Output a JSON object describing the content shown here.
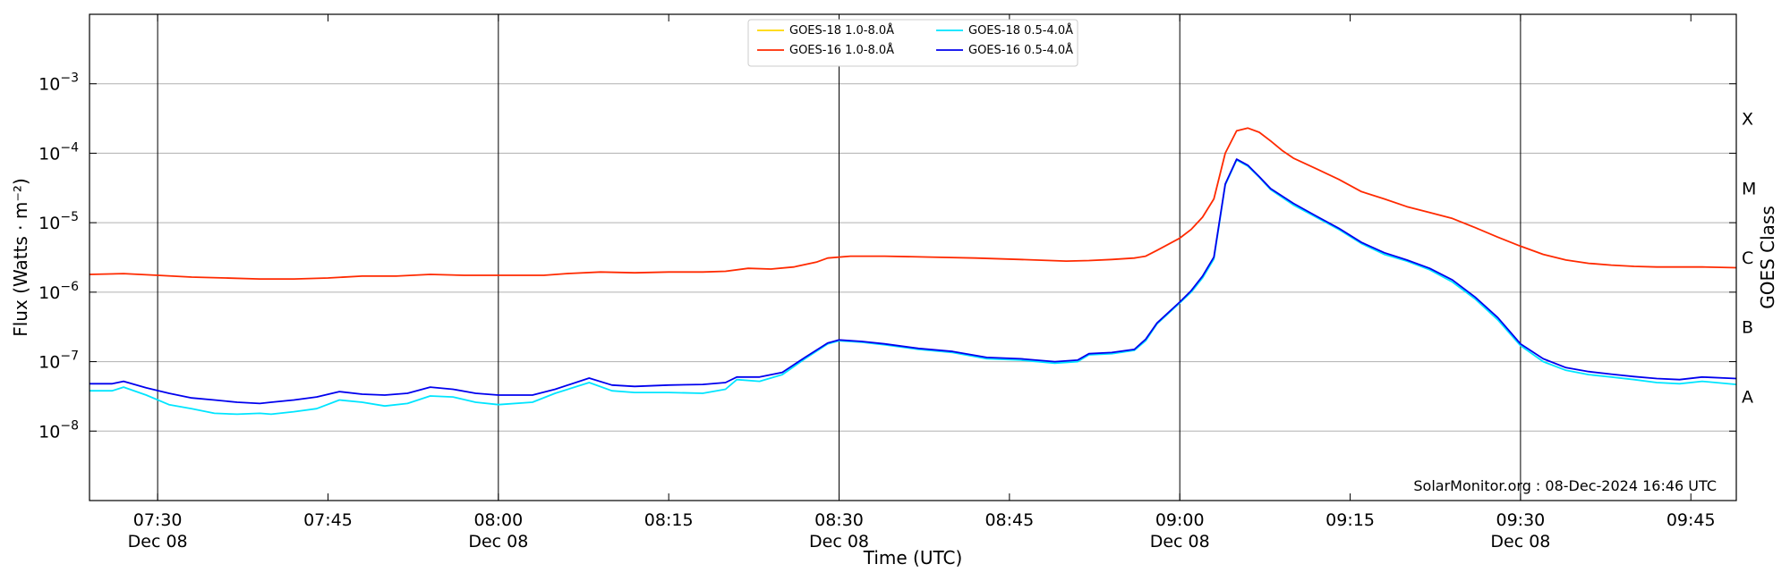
{
  "chart_data": {
    "type": "line",
    "xlabel": "Time (UTC)",
    "ylabel": "Flux (Watts · m⁻²)",
    "right_label": "GOES Class",
    "yscale": "log",
    "ylim": [
      1e-09,
      0.01
    ],
    "xlim": [
      "07:24",
      "09:49"
    ],
    "y_ticks": [
      {
        "value": 1e-08,
        "base": "10",
        "exp": "−8"
      },
      {
        "value": 1e-07,
        "base": "10",
        "exp": "−7"
      },
      {
        "value": 1e-06,
        "base": "10",
        "exp": "−6"
      },
      {
        "value": 1e-05,
        "base": "10",
        "exp": "−5"
      },
      {
        "value": 0.0001,
        "base": "10",
        "exp": "−4"
      },
      {
        "value": 0.001,
        "base": "10",
        "exp": "−3"
      }
    ],
    "x_ticks": [
      {
        "time": "07:30",
        "label": "07:30",
        "sublabel": "Dec 08",
        "vline": true
      },
      {
        "time": "07:45",
        "label": "07:45",
        "sublabel": "",
        "vline": false
      },
      {
        "time": "08:00",
        "label": "08:00",
        "sublabel": "Dec 08",
        "vline": true
      },
      {
        "time": "08:15",
        "label": "08:15",
        "sublabel": "",
        "vline": false
      },
      {
        "time": "08:30",
        "label": "08:30",
        "sublabel": "Dec 08",
        "vline": true
      },
      {
        "time": "08:45",
        "label": "08:45",
        "sublabel": "",
        "vline": false
      },
      {
        "time": "09:00",
        "label": "09:00",
        "sublabel": "Dec 08",
        "vline": true
      },
      {
        "time": "09:15",
        "label": "09:15",
        "sublabel": "",
        "vline": false
      },
      {
        "time": "09:30",
        "label": "09:30",
        "sublabel": "Dec 08",
        "vline": true
      },
      {
        "time": "09:45",
        "label": "09:45",
        "sublabel": "",
        "vline": false
      }
    ],
    "goes_classes": [
      {
        "label": "A",
        "value": 3.16e-08
      },
      {
        "label": "B",
        "value": 3.16e-07
      },
      {
        "label": "C",
        "value": 3.16e-06
      },
      {
        "label": "M",
        "value": 3.16e-05
      },
      {
        "label": "X",
        "value": 0.000316
      }
    ],
    "grid": "horizontal",
    "legend_position": "top-center",
    "credit": "SolarMonitor.org : 08-Dec-2024 16:46 UTC",
    "series": [
      {
        "name": "GOES-18 1.0-8.0Å",
        "color": "#ffd700",
        "points": []
      },
      {
        "name": "GOES-16 1.0-8.0Å",
        "color": "#ff2a00",
        "points": [
          [
            "07:24",
            1.8e-06
          ],
          [
            "07:27",
            1.85e-06
          ],
          [
            "07:30",
            1.75e-06
          ],
          [
            "07:33",
            1.65e-06
          ],
          [
            "07:36",
            1.6e-06
          ],
          [
            "07:39",
            1.55e-06
          ],
          [
            "07:42",
            1.55e-06
          ],
          [
            "07:45",
            1.6e-06
          ],
          [
            "07:48",
            1.7e-06
          ],
          [
            "07:51",
            1.7e-06
          ],
          [
            "07:54",
            1.8e-06
          ],
          [
            "07:57",
            1.75e-06
          ],
          [
            "08:00",
            1.75e-06
          ],
          [
            "08:04",
            1.75e-06
          ],
          [
            "08:06",
            1.85e-06
          ],
          [
            "08:09",
            1.95e-06
          ],
          [
            "08:12",
            1.9e-06
          ],
          [
            "08:15",
            1.95e-06
          ],
          [
            "08:18",
            1.95e-06
          ],
          [
            "08:20",
            2e-06
          ],
          [
            "08:22",
            2.2e-06
          ],
          [
            "08:24",
            2.15e-06
          ],
          [
            "08:26",
            2.3e-06
          ],
          [
            "08:28",
            2.7e-06
          ],
          [
            "08:29",
            3.1e-06
          ],
          [
            "08:31",
            3.3e-06
          ],
          [
            "08:34",
            3.3e-06
          ],
          [
            "08:38",
            3.2e-06
          ],
          [
            "08:42",
            3.1e-06
          ],
          [
            "08:46",
            2.95e-06
          ],
          [
            "08:50",
            2.8e-06
          ],
          [
            "08:52",
            2.85e-06
          ],
          [
            "08:54",
            2.95e-06
          ],
          [
            "08:56",
            3.1e-06
          ],
          [
            "08:57",
            3.3e-06
          ],
          [
            "08:58",
            4e-06
          ],
          [
            "09:00",
            6e-06
          ],
          [
            "09:01",
            8e-06
          ],
          [
            "09:02",
            1.2e-05
          ],
          [
            "09:03",
            2.2e-05
          ],
          [
            "09:04",
            0.0001
          ],
          [
            "09:05",
            0.00021
          ],
          [
            "09:06",
            0.00023
          ],
          [
            "09:07",
            0.0002
          ],
          [
            "09:08",
            0.00015
          ],
          [
            "09:09",
            0.00011
          ],
          [
            "09:10",
            8.5e-05
          ],
          [
            "09:12",
            6e-05
          ],
          [
            "09:14",
            4.2e-05
          ],
          [
            "09:16",
            2.8e-05
          ],
          [
            "09:18",
            2.2e-05
          ],
          [
            "09:20",
            1.7e-05
          ],
          [
            "09:22",
            1.4e-05
          ],
          [
            "09:24",
            1.15e-05
          ],
          [
            "09:26",
            8.5e-06
          ],
          [
            "09:28",
            6.2e-06
          ],
          [
            "09:30",
            4.6e-06
          ],
          [
            "09:32",
            3.5e-06
          ],
          [
            "09:34",
            2.9e-06
          ],
          [
            "09:36",
            2.6e-06
          ],
          [
            "09:38",
            2.45e-06
          ],
          [
            "09:40",
            2.35e-06
          ],
          [
            "09:42",
            2.3e-06
          ],
          [
            "09:44",
            2.3e-06
          ],
          [
            "09:46",
            2.3e-06
          ],
          [
            "09:49",
            2.25e-06
          ]
        ]
      },
      {
        "name": "GOES-18 0.5-4.0Å",
        "color": "#00e5ff",
        "points": [
          [
            "07:24",
            3.8e-08
          ],
          [
            "07:26",
            3.8e-08
          ],
          [
            "07:27",
            4.3e-08
          ],
          [
            "07:29",
            3.3e-08
          ],
          [
            "07:31",
            2.4e-08
          ],
          [
            "07:33",
            2.1e-08
          ],
          [
            "07:35",
            1.8e-08
          ],
          [
            "07:37",
            1.75e-08
          ],
          [
            "07:39",
            1.8e-08
          ],
          [
            "07:40",
            1.75e-08
          ],
          [
            "07:42",
            1.9e-08
          ],
          [
            "07:44",
            2.1e-08
          ],
          [
            "07:46",
            2.8e-08
          ],
          [
            "07:48",
            2.6e-08
          ],
          [
            "07:50",
            2.3e-08
          ],
          [
            "07:52",
            2.5e-08
          ],
          [
            "07:54",
            3.2e-08
          ],
          [
            "07:56",
            3.1e-08
          ],
          [
            "07:58",
            2.6e-08
          ],
          [
            "08:00",
            2.4e-08
          ],
          [
            "08:03",
            2.6e-08
          ],
          [
            "08:05",
            3.5e-08
          ],
          [
            "08:08",
            5e-08
          ],
          [
            "08:10",
            3.8e-08
          ],
          [
            "08:12",
            3.6e-08
          ],
          [
            "08:15",
            3.6e-08
          ],
          [
            "08:18",
            3.5e-08
          ],
          [
            "08:20",
            4e-08
          ],
          [
            "08:21",
            5.5e-08
          ],
          [
            "08:23",
            5.2e-08
          ],
          [
            "08:25",
            6.5e-08
          ],
          [
            "08:27",
            1.1e-07
          ],
          [
            "08:29",
            1.8e-07
          ],
          [
            "08:30",
            2e-07
          ],
          [
            "08:32",
            1.9e-07
          ],
          [
            "08:34",
            1.75e-07
          ],
          [
            "08:37",
            1.5e-07
          ],
          [
            "08:40",
            1.35e-07
          ],
          [
            "08:43",
            1.1e-07
          ],
          [
            "08:46",
            1.05e-07
          ],
          [
            "08:49",
            9.5e-08
          ],
          [
            "08:51",
            1e-07
          ],
          [
            "08:52",
            1.25e-07
          ],
          [
            "08:54",
            1.3e-07
          ],
          [
            "08:56",
            1.45e-07
          ],
          [
            "08:57",
            2e-07
          ],
          [
            "08:58",
            3.5e-07
          ],
          [
            "09:00",
            7e-07
          ],
          [
            "09:01",
            1e-06
          ],
          [
            "09:02",
            1.6e-06
          ],
          [
            "09:03",
            3e-06
          ],
          [
            "09:04",
            3.5e-05
          ],
          [
            "09:05",
            8e-05
          ],
          [
            "09:06",
            6.5e-05
          ],
          [
            "09:07",
            4.5e-05
          ],
          [
            "09:08",
            3e-05
          ],
          [
            "09:10",
            1.8e-05
          ],
          [
            "09:12",
            1.2e-05
          ],
          [
            "09:14",
            8e-06
          ],
          [
            "09:16",
            5e-06
          ],
          [
            "09:18",
            3.5e-06
          ],
          [
            "09:20",
            2.8e-06
          ],
          [
            "09:22",
            2.1e-06
          ],
          [
            "09:24",
            1.4e-06
          ],
          [
            "09:26",
            8e-07
          ],
          [
            "09:28",
            4e-07
          ],
          [
            "09:30",
            1.7e-07
          ],
          [
            "09:32",
            1e-07
          ],
          [
            "09:34",
            7.5e-08
          ],
          [
            "09:36",
            6.5e-08
          ],
          [
            "09:38",
            6e-08
          ],
          [
            "09:40",
            5.5e-08
          ],
          [
            "09:42",
            5e-08
          ],
          [
            "09:44",
            4.8e-08
          ],
          [
            "09:46",
            5.2e-08
          ],
          [
            "09:49",
            4.7e-08
          ]
        ]
      },
      {
        "name": "GOES-16 0.5-4.0Å",
        "color": "#0000ee",
        "points": [
          [
            "07:24",
            4.8e-08
          ],
          [
            "07:26",
            4.8e-08
          ],
          [
            "07:27",
            5.2e-08
          ],
          [
            "07:29",
            4.2e-08
          ],
          [
            "07:31",
            3.5e-08
          ],
          [
            "07:33",
            3e-08
          ],
          [
            "07:35",
            2.8e-08
          ],
          [
            "07:37",
            2.6e-08
          ],
          [
            "07:39",
            2.5e-08
          ],
          [
            "07:40",
            2.6e-08
          ],
          [
            "07:42",
            2.8e-08
          ],
          [
            "07:44",
            3.1e-08
          ],
          [
            "07:46",
            3.7e-08
          ],
          [
            "07:48",
            3.4e-08
          ],
          [
            "07:50",
            3.3e-08
          ],
          [
            "07:52",
            3.5e-08
          ],
          [
            "07:54",
            4.3e-08
          ],
          [
            "07:56",
            4e-08
          ],
          [
            "07:58",
            3.5e-08
          ],
          [
            "08:00",
            3.3e-08
          ],
          [
            "08:03",
            3.3e-08
          ],
          [
            "08:05",
            4e-08
          ],
          [
            "08:08",
            5.8e-08
          ],
          [
            "08:10",
            4.6e-08
          ],
          [
            "08:12",
            4.4e-08
          ],
          [
            "08:15",
            4.6e-08
          ],
          [
            "08:18",
            4.7e-08
          ],
          [
            "08:20",
            5e-08
          ],
          [
            "08:21",
            6e-08
          ],
          [
            "08:23",
            6e-08
          ],
          [
            "08:25",
            7e-08
          ],
          [
            "08:27",
            1.15e-07
          ],
          [
            "08:29",
            1.85e-07
          ],
          [
            "08:30",
            2.05e-07
          ],
          [
            "08:32",
            1.95e-07
          ],
          [
            "08:34",
            1.8e-07
          ],
          [
            "08:37",
            1.55e-07
          ],
          [
            "08:40",
            1.4e-07
          ],
          [
            "08:43",
            1.15e-07
          ],
          [
            "08:46",
            1.1e-07
          ],
          [
            "08:49",
            1e-07
          ],
          [
            "08:51",
            1.05e-07
          ],
          [
            "08:52",
            1.3e-07
          ],
          [
            "08:54",
            1.35e-07
          ],
          [
            "08:56",
            1.5e-07
          ],
          [
            "08:57",
            2.1e-07
          ],
          [
            "08:58",
            3.6e-07
          ],
          [
            "09:00",
            7.2e-07
          ],
          [
            "09:01",
            1.05e-06
          ],
          [
            "09:02",
            1.7e-06
          ],
          [
            "09:03",
            3.2e-06
          ],
          [
            "09:04",
            3.6e-05
          ],
          [
            "09:05",
            8.2e-05
          ],
          [
            "09:06",
            6.7e-05
          ],
          [
            "09:07",
            4.6e-05
          ],
          [
            "09:08",
            3.1e-05
          ],
          [
            "09:10",
            1.9e-05
          ],
          [
            "09:12",
            1.25e-05
          ],
          [
            "09:14",
            8.3e-06
          ],
          [
            "09:16",
            5.2e-06
          ],
          [
            "09:18",
            3.7e-06
          ],
          [
            "09:20",
            2.9e-06
          ],
          [
            "09:22",
            2.2e-06
          ],
          [
            "09:24",
            1.5e-06
          ],
          [
            "09:26",
            8.5e-07
          ],
          [
            "09:28",
            4.3e-07
          ],
          [
            "09:30",
            1.8e-07
          ],
          [
            "09:32",
            1.1e-07
          ],
          [
            "09:34",
            8.2e-08
          ],
          [
            "09:36",
            7.2e-08
          ],
          [
            "09:38",
            6.6e-08
          ],
          [
            "09:40",
            6.1e-08
          ],
          [
            "09:42",
            5.7e-08
          ],
          [
            "09:44",
            5.5e-08
          ],
          [
            "09:46",
            6e-08
          ],
          [
            "09:49",
            5.7e-08
          ]
        ]
      }
    ]
  }
}
